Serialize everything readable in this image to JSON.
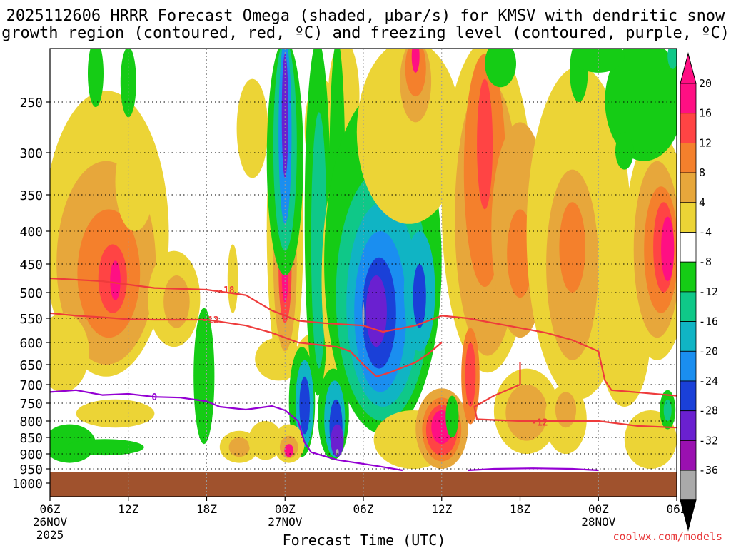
{
  "chart_data": {
    "type": "heatmap",
    "title_line1": "2025112606 HRRR Forecast Omega (shaded, μbar/s) for KMSV with dendritic snow",
    "title_line2": "growth region (contoured, red, ºC) and freezing level (contoured, purple, ºC)",
    "xlabel": "Forecast Time (UTC)",
    "ylabel": "",
    "y_scale": "log-pressure",
    "ylim": [
      1000,
      205
    ],
    "xlim": [
      0,
      48
    ],
    "grid": true,
    "credit": "coolwx.com/models",
    "y_ticks": [
      250,
      300,
      350,
      400,
      450,
      500,
      550,
      600,
      650,
      700,
      750,
      800,
      850,
      900,
      950,
      1000
    ],
    "x_ticks": [
      {
        "hour": 0,
        "l1": "06Z",
        "l2": "26NOV",
        "l3": "2025"
      },
      {
        "hour": 6,
        "l1": "12Z",
        "l2": "",
        "l3": ""
      },
      {
        "hour": 12,
        "l1": "18Z",
        "l2": "",
        "l3": ""
      },
      {
        "hour": 18,
        "l1": "00Z",
        "l2": "27NOV",
        "l3": ""
      },
      {
        "hour": 24,
        "l1": "06Z",
        "l2": "",
        "l3": ""
      },
      {
        "hour": 30,
        "l1": "12Z",
        "l2": "",
        "l3": ""
      },
      {
        "hour": 36,
        "l1": "18Z",
        "l2": "",
        "l3": ""
      },
      {
        "hour": 42,
        "l1": "00Z",
        "l2": "28NOV",
        "l3": ""
      },
      {
        "hour": 48,
        "l1": "06Z",
        "l2": "",
        "l3": ""
      }
    ],
    "colorbar": {
      "labels": [
        "20",
        "16",
        "12",
        "8",
        "4",
        "-4",
        "-8",
        "-12",
        "-16",
        "-20",
        "-24",
        "-28",
        "-32",
        "-36"
      ],
      "colors": [
        "#ff0f83",
        "#ff4444",
        "#f4802c",
        "#e7a73b",
        "#ecd436",
        "#ffffff",
        "#15cc15",
        "#0fc888",
        "#10b4c4",
        "#1a8ef0",
        "#1a40d8",
        "#6a20d0",
        "#9a10b0",
        "#aaaaaa"
      ],
      "top_arrow": "#ff0f83",
      "bottom_arrow": "#000000"
    },
    "omega_colors": {
      "p20": "#ff0f83",
      "p16": "#ff4444",
      "p12": "#f4802c",
      "p8": "#e7a73b",
      "p4": "#ecd436",
      "m4": "#15cc15",
      "m8": "#0fc888",
      "m12": "#10b4c4",
      "m16": "#1a8ef0",
      "m20": "#1a40d8",
      "m24": "#6a20d0",
      "m28": "#9a10b0",
      "m32": "#aaaaaa"
    },
    "terrain_color": "#a0522d",
    "omega_features": [
      {
        "level": "p4",
        "t": 4.3,
        "p": 460,
        "rt": 4.8,
        "rp": 220
      },
      {
        "level": "p8",
        "t": 4.3,
        "p": 480,
        "rt": 3.8,
        "rp": 170
      },
      {
        "level": "p12",
        "t": 4.5,
        "p": 480,
        "rt": 2.4,
        "rp": 110
      },
      {
        "level": "p16",
        "t": 4.8,
        "p": 480,
        "rt": 1.1,
        "rp": 60
      },
      {
        "level": "p20",
        "t": 5.0,
        "p": 480,
        "rt": 0.4,
        "rp": 35
      },
      {
        "level": "p4",
        "t": 6.5,
        "p": 340,
        "rt": 1.5,
        "rp": 60
      },
      {
        "level": "p4",
        "t": 1.0,
        "p": 630,
        "rt": 2.0,
        "rp": 90
      },
      {
        "level": "p4",
        "t": 9.5,
        "p": 520,
        "rt": 2.0,
        "rp": 90
      },
      {
        "level": "p8",
        "t": 9.7,
        "p": 520,
        "rt": 1.0,
        "rp": 50
      },
      {
        "level": "m4",
        "t": 1.5,
        "p": 870,
        "rt": 2.0,
        "rp": 60
      },
      {
        "level": "m4",
        "t": 4.2,
        "p": 880,
        "rt": 3.0,
        "rp": 25
      },
      {
        "level": "p4",
        "t": 5.0,
        "p": 780,
        "rt": 3.0,
        "rp": 40
      },
      {
        "level": "m4",
        "t": 6.0,
        "p": 235,
        "rt": 0.6,
        "rp": 30
      },
      {
        "level": "m4",
        "t": 11.8,
        "p": 700,
        "rt": 0.8,
        "rp": 170
      },
      {
        "level": "p4",
        "t": 14.5,
        "p": 880,
        "rt": 1.5,
        "rp": 50
      },
      {
        "level": "p8",
        "t": 14.5,
        "p": 880,
        "rt": 0.8,
        "rp": 30
      },
      {
        "level": "p4",
        "t": 16.5,
        "p": 860,
        "rt": 1.3,
        "rp": 60
      },
      {
        "level": "p4",
        "t": 17.5,
        "p": 640,
        "rt": 1.8,
        "rp": 50
      },
      {
        "level": "p4",
        "t": 14.0,
        "p": 480,
        "rt": 0.4,
        "rp": 60
      },
      {
        "level": "p4",
        "t": 15.5,
        "p": 280,
        "rt": 1.2,
        "rp": 50
      },
      {
        "level": "p4",
        "t": 20.3,
        "p": 650,
        "rt": 1.6,
        "rp": 70
      },
      {
        "level": "p4",
        "t": 20.8,
        "p": 280,
        "rt": 1.3,
        "rp": 50
      },
      {
        "level": "p4",
        "t": 18.0,
        "p": 460,
        "rt": 1.4,
        "rp": 230
      },
      {
        "level": "p8",
        "t": 18.0,
        "p": 470,
        "rt": 0.9,
        "rp": 150
      },
      {
        "level": "p16",
        "t": 18.0,
        "p": 470,
        "rt": 0.5,
        "rp": 90
      },
      {
        "level": "p20",
        "t": 18.0,
        "p": 470,
        "rt": 0.25,
        "rp": 50
      },
      {
        "level": "m4",
        "t": 18.0,
        "p": 310,
        "rt": 1.4,
        "rp": 160
      },
      {
        "level": "m8",
        "t": 18.0,
        "p": 300,
        "rt": 0.9,
        "rp": 130
      },
      {
        "level": "m16",
        "t": 18.0,
        "p": 290,
        "rt": 0.5,
        "rp": 100
      },
      {
        "level": "m24",
        "t": 18.0,
        "p": 270,
        "rt": 0.25,
        "rp": 60
      },
      {
        "level": "m4",
        "t": 19.3,
        "p": 760,
        "rt": 1.0,
        "rp": 150
      },
      {
        "level": "m12",
        "t": 19.5,
        "p": 760,
        "rt": 0.7,
        "rp": 120
      },
      {
        "level": "m20",
        "t": 19.5,
        "p": 760,
        "rt": 0.4,
        "rp": 80
      },
      {
        "level": "p4",
        "t": 18.3,
        "p": 870,
        "rt": 1.2,
        "rp": 60
      },
      {
        "level": "p8",
        "t": 18.3,
        "p": 880,
        "rt": 0.7,
        "rp": 35
      },
      {
        "level": "p20",
        "t": 18.3,
        "p": 890,
        "rt": 0.35,
        "rp": 20
      },
      {
        "level": "m4",
        "t": 20.5,
        "p": 430,
        "rt": 1.0,
        "rp": 300
      },
      {
        "level": "m8",
        "t": 20.6,
        "p": 460,
        "rt": 0.6,
        "rp": 200
      },
      {
        "level": "p4",
        "t": 22.5,
        "p": 220,
        "rt": 1.2,
        "rp": 80
      },
      {
        "level": "m4",
        "t": 22.0,
        "p": 360,
        "rt": 0.6,
        "rp": 160
      },
      {
        "level": "p4",
        "t": 22.3,
        "p": 520,
        "rt": 1.5,
        "rp": 200
      },
      {
        "level": "p8",
        "t": 22.3,
        "p": 510,
        "rt": 1.0,
        "rp": 160
      },
      {
        "level": "p16",
        "t": 22.3,
        "p": 500,
        "rt": 0.6,
        "rp": 120
      },
      {
        "level": "p20",
        "t": 22.3,
        "p": 490,
        "rt": 0.3,
        "rp": 80
      },
      {
        "level": "m4",
        "t": 21.7,
        "p": 790,
        "rt": 1.2,
        "rp": 130
      },
      {
        "level": "m12",
        "t": 21.8,
        "p": 800,
        "rt": 0.8,
        "rp": 110
      },
      {
        "level": "m20",
        "t": 21.9,
        "p": 820,
        "rt": 0.5,
        "rp": 80
      },
      {
        "level": "m24",
        "t": 22.0,
        "p": 860,
        "rt": 0.5,
        "rp": 50
      },
      {
        "level": "m32",
        "t": 22.0,
        "p": 895,
        "rt": 0.12,
        "rp": 10
      },
      {
        "level": "m4",
        "t": 25.5,
        "p": 540,
        "rt": 4.5,
        "rp": 300
      },
      {
        "level": "m8",
        "t": 25.5,
        "p": 560,
        "rt": 3.6,
        "rp": 240
      },
      {
        "level": "m12",
        "t": 25.5,
        "p": 560,
        "rt": 2.8,
        "rp": 200
      },
      {
        "level": "m16",
        "t": 25.3,
        "p": 560,
        "rt": 2.0,
        "rp": 160
      },
      {
        "level": "m20",
        "t": 25.2,
        "p": 550,
        "rt": 1.3,
        "rp": 110
      },
      {
        "level": "m24",
        "t": 25.0,
        "p": 540,
        "rt": 0.8,
        "rp": 70
      },
      {
        "level": "m32",
        "t": 24.0,
        "p": 545,
        "rt": 0.06,
        "rp": 25
      },
      {
        "level": "m12",
        "t": 28.3,
        "p": 510,
        "rt": 1.2,
        "rp": 110
      },
      {
        "level": "m20",
        "t": 28.3,
        "p": 510,
        "rt": 0.5,
        "rp": 60
      },
      {
        "level": "p4",
        "t": 27.5,
        "p": 280,
        "rt": 4.0,
        "rp": 110
      },
      {
        "level": "p4",
        "t": 27.8,
        "p": 860,
        "rt": 3.0,
        "rp": 90
      },
      {
        "level": "p8",
        "t": 28.0,
        "p": 210,
        "rt": 1.2,
        "rp": 60
      },
      {
        "level": "p12",
        "t": 28.0,
        "p": 205,
        "rt": 0.8,
        "rp": 40
      },
      {
        "level": "p20",
        "t": 28.0,
        "p": 205,
        "rt": 0.3,
        "rp": 20
      },
      {
        "level": "p8",
        "t": 30.0,
        "p": 830,
        "rt": 2.0,
        "rp": 120
      },
      {
        "level": "p12",
        "t": 30.0,
        "p": 830,
        "rt": 1.5,
        "rp": 95
      },
      {
        "level": "p16",
        "t": 30.0,
        "p": 830,
        "rt": 1.2,
        "rp": 75
      },
      {
        "level": "p20",
        "t": 30.0,
        "p": 820,
        "rt": 0.8,
        "rp": 50
      },
      {
        "level": "m4",
        "t": 30.8,
        "p": 790,
        "rt": 0.5,
        "rp": 60
      },
      {
        "level": "p4",
        "t": 33.5,
        "p": 430,
        "rt": 3.5,
        "rp": 240
      },
      {
        "level": "p8",
        "t": 33.5,
        "p": 430,
        "rt": 2.5,
        "rp": 200
      },
      {
        "level": "p12",
        "t": 33.3,
        "p": 350,
        "rt": 1.6,
        "rp": 140
      },
      {
        "level": "p16",
        "t": 33.3,
        "p": 300,
        "rt": 0.6,
        "rp": 70
      },
      {
        "level": "p12",
        "t": 32.2,
        "p": 690,
        "rt": 0.7,
        "rp": 120
      },
      {
        "level": "p16",
        "t": 32.2,
        "p": 680,
        "rt": 0.4,
        "rp": 80
      },
      {
        "level": "p8",
        "t": 36.0,
        "p": 430,
        "rt": 2.2,
        "rp": 160
      },
      {
        "level": "p12",
        "t": 36.0,
        "p": 440,
        "rt": 1.0,
        "rp": 70
      },
      {
        "level": "p4",
        "t": 36.5,
        "p": 780,
        "rt": 2.5,
        "rp": 120
      },
      {
        "level": "p8",
        "t": 36.5,
        "p": 780,
        "rt": 1.6,
        "rp": 80
      },
      {
        "level": "p4",
        "t": 40.5,
        "p": 480,
        "rt": 4.0,
        "rp": 260
      },
      {
        "level": "p8",
        "t": 40.0,
        "p": 480,
        "rt": 2.0,
        "rp": 160
      },
      {
        "level": "p12",
        "t": 40.0,
        "p": 430,
        "rt": 1.0,
        "rp": 70
      },
      {
        "level": "p4",
        "t": 39.5,
        "p": 800,
        "rt": 1.6,
        "rp": 100
      },
      {
        "level": "p8",
        "t": 39.5,
        "p": 770,
        "rt": 0.8,
        "rp": 50
      },
      {
        "level": "p4",
        "t": 44.0,
        "p": 600,
        "rt": 2.0,
        "rp": 160
      },
      {
        "level": "p4",
        "t": 46.5,
        "p": 460,
        "rt": 2.5,
        "rp": 180
      },
      {
        "level": "p8",
        "t": 46.5,
        "p": 450,
        "rt": 1.8,
        "rp": 140
      },
      {
        "level": "p12",
        "t": 46.8,
        "p": 440,
        "rt": 1.3,
        "rp": 100
      },
      {
        "level": "p16",
        "t": 47.0,
        "p": 430,
        "rt": 0.8,
        "rp": 70
      },
      {
        "level": "p20",
        "t": 47.3,
        "p": 430,
        "rt": 0.5,
        "rp": 50
      },
      {
        "level": "p4",
        "t": 46.0,
        "p": 860,
        "rt": 2.0,
        "rp": 90
      },
      {
        "level": "m4",
        "t": 47.3,
        "p": 770,
        "rt": 0.6,
        "rp": 55
      },
      {
        "level": "m8",
        "t": 47.3,
        "p": 770,
        "rt": 0.3,
        "rp": 30
      },
      {
        "level": "m4",
        "t": 3.5,
        "p": 225,
        "rt": 0.6,
        "rp": 30
      },
      {
        "level": "m4",
        "t": 34.5,
        "p": 215,
        "rt": 1.2,
        "rp": 22
      },
      {
        "level": "m4",
        "t": 40.5,
        "p": 220,
        "rt": 0.7,
        "rp": 30
      },
      {
        "level": "m4",
        "t": 45.5,
        "p": 250,
        "rt": 3.0,
        "rp": 60
      },
      {
        "level": "m4",
        "t": 44.0,
        "p": 300,
        "rt": 0.7,
        "rp": 20
      },
      {
        "level": "m4",
        "t": 42.0,
        "p": 210,
        "rt": 2.0,
        "rp": 15
      },
      {
        "level": "m8",
        "t": 47.7,
        "p": 212,
        "rt": 0.4,
        "rp": 10
      }
    ],
    "contours": [
      {
        "name": "-18",
        "color": "#ee3b3b",
        "label": "-18",
        "label_t": 13.5,
        "label_p": 495,
        "points": [
          [
            0,
            475
          ],
          [
            4,
            480
          ],
          [
            8,
            492
          ],
          [
            12,
            495
          ],
          [
            15,
            505
          ],
          [
            17,
            535
          ],
          [
            19,
            555
          ],
          [
            21,
            560
          ],
          [
            24,
            565
          ],
          [
            25.5,
            578
          ],
          [
            28,
            565
          ],
          [
            30,
            545
          ],
          [
            32,
            550
          ],
          [
            35,
            565
          ],
          [
            38,
            580
          ],
          [
            40,
            595
          ],
          [
            42,
            620
          ],
          [
            42.5,
            690
          ],
          [
            43,
            715
          ],
          [
            48,
            730
          ]
        ]
      },
      {
        "name": "-12",
        "color": "#ee3b3b",
        "label": "-12",
        "label_t": 12.3,
        "label_p": 553,
        "points": [
          [
            0,
            540
          ],
          [
            2,
            545
          ],
          [
            4,
            548
          ],
          [
            6,
            552
          ],
          [
            8,
            553
          ],
          [
            12,
            553
          ],
          [
            15,
            565
          ],
          [
            17,
            580
          ],
          [
            18,
            590
          ],
          [
            19,
            600
          ],
          [
            22,
            610
          ],
          [
            23,
            620
          ],
          [
            24,
            650
          ],
          [
            25,
            680
          ],
          [
            26,
            670
          ],
          [
            28,
            645
          ],
          [
            29,
            625
          ],
          [
            30,
            600
          ]
        ]
      },
      {
        "name": "-12b",
        "color": "#ee3b3b",
        "label": "-12",
        "label_t": 37.5,
        "label_p": 803,
        "points": [
          [
            36,
            645
          ],
          [
            36,
            700
          ],
          [
            34,
            730
          ],
          [
            32.5,
            760
          ],
          [
            32.7,
            795
          ],
          [
            36,
            800
          ],
          [
            38,
            800
          ],
          [
            42,
            800
          ],
          [
            45,
            815
          ],
          [
            48,
            820
          ]
        ]
      },
      {
        "name": "freezing",
        "color": "#9400d3",
        "label": "0",
        "label_t": 8,
        "label_p": 733,
        "points": [
          [
            0,
            720
          ],
          [
            2,
            715
          ],
          [
            4,
            728
          ],
          [
            6,
            725
          ],
          [
            8,
            733
          ],
          [
            10,
            735
          ],
          [
            12,
            745
          ],
          [
            13,
            760
          ],
          [
            15,
            768
          ],
          [
            17,
            758
          ],
          [
            18,
            770
          ],
          [
            19,
            800
          ],
          [
            19.5,
            865
          ],
          [
            20,
            895
          ],
          [
            22,
            920
          ],
          [
            25,
            940
          ],
          [
            27,
            955
          ]
        ]
      },
      {
        "name": "freezing2",
        "color": "#9400d3",
        "label": "",
        "label_t": 0,
        "label_p": 0,
        "points": [
          [
            32,
            955
          ],
          [
            34,
            950
          ],
          [
            37,
            948
          ],
          [
            40,
            950
          ],
          [
            42,
            955
          ]
        ]
      }
    ]
  }
}
